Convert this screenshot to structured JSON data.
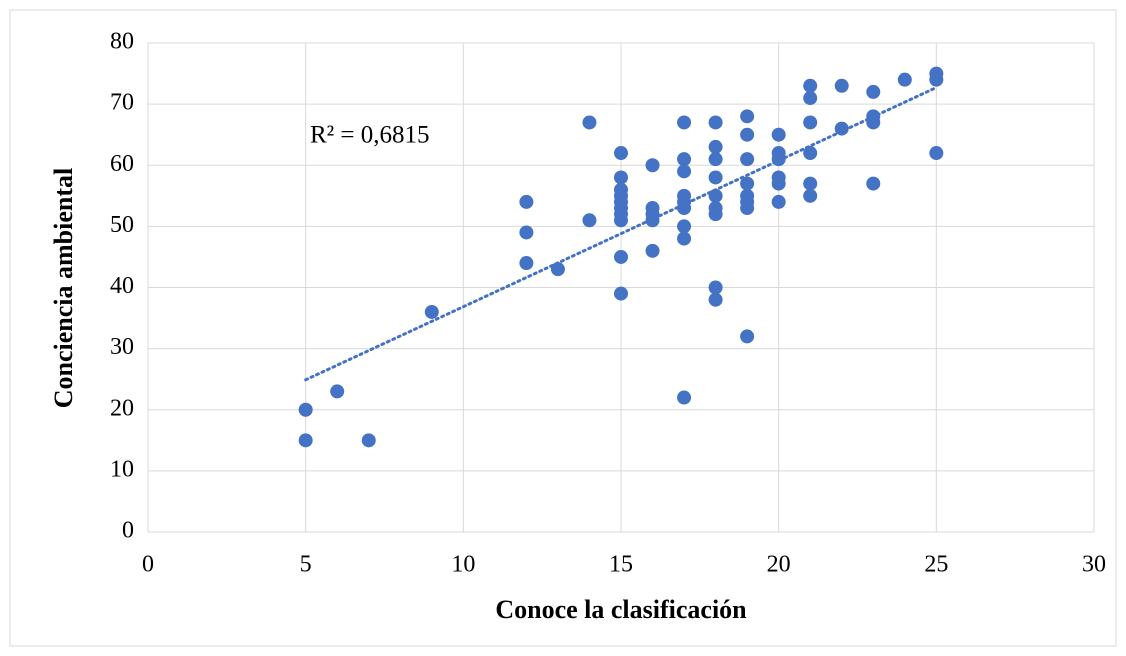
{
  "chart_data": {
    "type": "scatter",
    "x_label": "Conoce la clasificación",
    "y_label": "Conciencia ambiental",
    "annotation": "R² = 0,6815",
    "color": "#4472c4",
    "trendline": true,
    "grid": true,
    "x": [
      5,
      5,
      6,
      7,
      9,
      12,
      12,
      12,
      13,
      14,
      14,
      15,
      15,
      15,
      15,
      15,
      15,
      15,
      15,
      15,
      15,
      16,
      16,
      16,
      16,
      16,
      17,
      17,
      17,
      17,
      17,
      17,
      17,
      17,
      17,
      18,
      18,
      18,
      18,
      18,
      18,
      18,
      18,
      18,
      19,
      19,
      19,
      19,
      19,
      19,
      19,
      19,
      20,
      20,
      20,
      20,
      20,
      20,
      21,
      21,
      21,
      21,
      21,
      21,
      22,
      22,
      23,
      23,
      23,
      23,
      24,
      25,
      25,
      25
    ],
    "values": [
      20,
      15,
      23,
      15,
      36,
      54,
      49,
      44,
      43,
      67,
      51,
      62,
      58,
      56,
      55,
      54,
      53,
      52,
      51,
      45,
      39,
      60,
      53,
      52,
      51,
      46,
      67,
      61,
      59,
      55,
      54,
      53,
      50,
      48,
      22,
      67,
      63,
      61,
      58,
      55,
      53,
      52,
      40,
      38,
      68,
      65,
      61,
      57,
      55,
      54,
      53,
      32,
      65,
      62,
      61,
      58,
      57,
      54,
      73,
      71,
      67,
      62,
      57,
      55,
      73,
      66,
      72,
      68,
      67,
      57,
      74,
      75,
      74,
      62
    ],
    "xlim": [
      0,
      30
    ],
    "xticks": [
      0,
      5,
      10,
      15,
      20,
      25,
      30
    ],
    "ylim": [
      0,
      80
    ],
    "yticks": [
      0,
      10,
      20,
      30,
      40,
      50,
      60,
      70,
      80
    ]
  }
}
